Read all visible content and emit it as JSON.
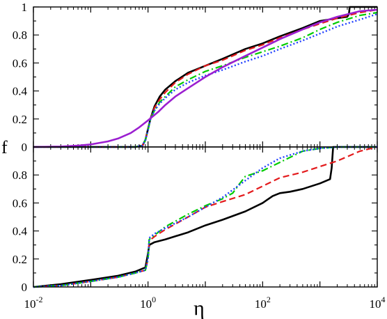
{
  "chart_data": [
    {
      "type": "line",
      "panel": "top",
      "xlabel": "",
      "ylabel": "",
      "xscale": "log",
      "xlim": [
        0.01,
        10000
      ],
      "ylim": [
        0,
        1
      ],
      "yticks": [
        0,
        0.2,
        0.4,
        0.6,
        0.8,
        1
      ],
      "ytick_labels": [
        "0",
        "0.2",
        "0.4",
        "0.6",
        "0.8",
        "1"
      ],
      "grid": false,
      "legend": "none",
      "series": [
        {
          "style": "solid",
          "color": "#000000",
          "x": [
            0.01,
            0.3,
            0.6,
            0.8,
            0.9,
            1.0,
            1.1,
            1.3,
            1.6,
            2,
            3,
            5,
            10,
            20,
            50,
            100,
            200,
            500,
            1000,
            2000,
            3000,
            3200,
            3300,
            10000
          ],
          "y": [
            0,
            0,
            0,
            0.01,
            0.05,
            0.13,
            0.2,
            0.29,
            0.36,
            0.41,
            0.47,
            0.53,
            0.58,
            0.63,
            0.7,
            0.74,
            0.79,
            0.85,
            0.9,
            0.92,
            0.93,
            0.95,
            1.0,
            1.0
          ]
        },
        {
          "style": "dashed",
          "color": "#e31a1c",
          "x": [
            0.01,
            0.3,
            0.6,
            0.8,
            0.9,
            1.0,
            1.1,
            1.3,
            1.6,
            2,
            3,
            5,
            10,
            20,
            50,
            100,
            200,
            500,
            1000,
            2000,
            5000,
            10000
          ],
          "y": [
            0,
            0,
            0,
            0.01,
            0.05,
            0.13,
            0.2,
            0.28,
            0.34,
            0.39,
            0.46,
            0.52,
            0.58,
            0.62,
            0.69,
            0.73,
            0.78,
            0.84,
            0.88,
            0.92,
            0.96,
            0.98
          ]
        },
        {
          "style": "dashdot",
          "color": "#00cc00",
          "x": [
            0.01,
            0.3,
            0.6,
            0.8,
            0.9,
            1.0,
            1.1,
            1.3,
            1.6,
            2,
            3,
            5,
            10,
            20,
            50,
            100,
            200,
            500,
            1000,
            2000,
            5000,
            10000
          ],
          "y": [
            0,
            0,
            0,
            0.01,
            0.05,
            0.12,
            0.2,
            0.26,
            0.32,
            0.36,
            0.43,
            0.48,
            0.54,
            0.58,
            0.64,
            0.68,
            0.72,
            0.78,
            0.84,
            0.89,
            0.94,
            0.96
          ]
        },
        {
          "style": "dotted",
          "color": "#1f3fff",
          "x": [
            0.01,
            0.3,
            0.6,
            0.8,
            0.9,
            1.0,
            1.1,
            1.3,
            1.6,
            2,
            3,
            5,
            10,
            20,
            50,
            100,
            200,
            500,
            1000,
            2000,
            5000,
            10000
          ],
          "y": [
            0,
            0,
            0,
            0.01,
            0.05,
            0.12,
            0.2,
            0.26,
            0.31,
            0.35,
            0.41,
            0.46,
            0.51,
            0.55,
            0.61,
            0.65,
            0.7,
            0.76,
            0.81,
            0.86,
            0.91,
            0.95
          ]
        },
        {
          "style": "solid-thick",
          "color": "#9b1fd0",
          "x": [
            0.01,
            0.03,
            0.06,
            0.1,
            0.2,
            0.3,
            0.5,
            0.7,
            1,
            1.5,
            2,
            3,
            5,
            10,
            20,
            50,
            100,
            200,
            500,
            1000,
            2000,
            5000,
            10000
          ],
          "y": [
            0,
            0.003,
            0.01,
            0.018,
            0.04,
            0.06,
            0.1,
            0.14,
            0.19,
            0.25,
            0.3,
            0.36,
            0.42,
            0.5,
            0.57,
            0.65,
            0.71,
            0.77,
            0.84,
            0.89,
            0.93,
            0.97,
            0.98
          ]
        }
      ]
    },
    {
      "type": "line",
      "panel": "bottom",
      "xlabel": "η",
      "ylabel": "f",
      "xscale": "log",
      "xlim": [
        0.01,
        10000
      ],
      "ylim": [
        0,
        1
      ],
      "xticks": [
        0.01,
        1,
        100,
        10000
      ],
      "xtick_labels": [
        [
          "10",
          "-2"
        ],
        [
          "10",
          "0"
        ],
        [
          "10",
          "2"
        ],
        [
          "10",
          "4"
        ]
      ],
      "yticks": [
        0,
        0.2,
        0.4,
        0.6,
        0.8
      ],
      "ytick_labels": [
        "0",
        "0.2",
        "0.4",
        "0.6",
        "0.8"
      ],
      "grid": false,
      "legend": "none",
      "series": [
        {
          "style": "solid",
          "color": "#000000",
          "x": [
            0.01,
            0.03,
            0.1,
            0.3,
            0.6,
            0.9,
            1.0,
            1.05,
            1.3,
            2,
            5,
            10,
            20,
            50,
            100,
            150,
            200,
            300,
            500,
            1000,
            1500,
            1600,
            1700,
            2000,
            10000
          ],
          "y": [
            0,
            0.02,
            0.05,
            0.08,
            0.11,
            0.14,
            0.24,
            0.3,
            0.32,
            0.34,
            0.39,
            0.44,
            0.48,
            0.54,
            0.6,
            0.65,
            0.67,
            0.68,
            0.7,
            0.74,
            0.77,
            0.85,
            1.0,
            1.0,
            1.0
          ]
        },
        {
          "style": "dashed",
          "color": "#e31a1c",
          "x": [
            0.01,
            0.03,
            0.1,
            0.3,
            0.6,
            0.9,
            1.0,
            1.05,
            1.3,
            2,
            5,
            10,
            20,
            50,
            100,
            200,
            500,
            1000,
            2000,
            5000,
            10000
          ],
          "y": [
            0,
            0.01,
            0.04,
            0.07,
            0.1,
            0.12,
            0.2,
            0.33,
            0.36,
            0.41,
            0.5,
            0.57,
            0.61,
            0.66,
            0.72,
            0.78,
            0.82,
            0.86,
            0.9,
            0.97,
            1.0
          ]
        },
        {
          "style": "dashdot",
          "color": "#00cc00",
          "x": [
            0.01,
            0.03,
            0.1,
            0.3,
            0.6,
            0.9,
            1.0,
            1.05,
            1.3,
            2,
            5,
            10,
            20,
            30,
            40,
            50,
            100,
            200,
            500,
            1000,
            2000,
            10000
          ],
          "y": [
            0,
            0.01,
            0.04,
            0.07,
            0.1,
            0.12,
            0.2,
            0.34,
            0.37,
            0.43,
            0.52,
            0.58,
            0.63,
            0.67,
            0.74,
            0.79,
            0.83,
            0.89,
            0.97,
            0.99,
            1.0,
            1.0
          ]
        },
        {
          "style": "dotted",
          "color": "#1f3fff",
          "x": [
            0.01,
            0.03,
            0.1,
            0.3,
            0.6,
            0.9,
            1.0,
            1.05,
            1.3,
            2,
            5,
            10,
            20,
            50,
            100,
            200,
            500,
            1000,
            2000,
            10000
          ],
          "y": [
            0,
            0.01,
            0.04,
            0.07,
            0.1,
            0.12,
            0.2,
            0.35,
            0.38,
            0.42,
            0.5,
            0.57,
            0.64,
            0.76,
            0.85,
            0.92,
            0.97,
            0.99,
            1.0,
            1.0
          ]
        }
      ]
    }
  ]
}
